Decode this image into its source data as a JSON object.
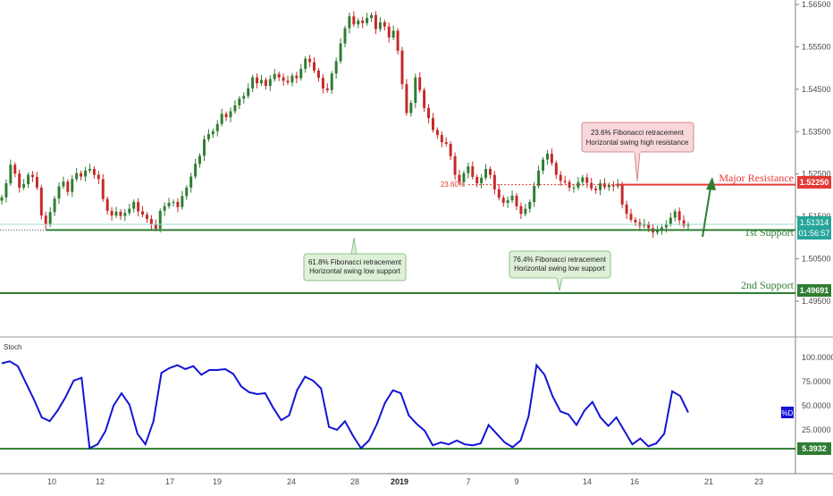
{
  "chart_data": [
    {
      "type": "candlestick",
      "price_ticks": [
        "1.56500",
        "1.55500",
        "1.54500",
        "1.53500",
        "1.52500",
        "1.51500",
        "1.50500",
        "1.49500"
      ],
      "date_ticks": [
        "10",
        "12",
        "17",
        "19",
        "24",
        "28",
        "2019",
        "7",
        "9",
        "14",
        "16",
        "21",
        "23"
      ],
      "ylim": [
        1.4875,
        1.567
      ],
      "price_close_series": [
        1.5195,
        1.5228,
        1.5272,
        1.5251,
        1.5218,
        1.5226,
        1.5248,
        1.5243,
        1.5218,
        1.5152,
        1.5131,
        1.516,
        1.5192,
        1.5221,
        1.5232,
        1.5208,
        1.5238,
        1.5252,
        1.5244,
        1.5258,
        1.5262,
        1.5248,
        1.5238,
        1.5191,
        1.5163,
        1.5152,
        1.5161,
        1.5151,
        1.5158,
        1.5168,
        1.5184,
        1.5162,
        1.5154,
        1.5144,
        1.5131,
        1.5121,
        1.5163,
        1.5174,
        1.5182,
        1.5184,
        1.5172,
        1.5198,
        1.5218,
        1.5244,
        1.5274,
        1.5293,
        1.5332,
        1.5344,
        1.5351,
        1.5368,
        1.5392,
        1.5384,
        1.5398,
        1.5412,
        1.5428,
        1.5434,
        1.5452,
        1.5478,
        1.5464,
        1.5472,
        1.5458,
        1.5474,
        1.5486,
        1.5478,
        1.547,
        1.5466,
        1.5482,
        1.5476,
        1.5498,
        1.5522,
        1.5514,
        1.5494,
        1.5477,
        1.5452,
        1.5448,
        1.5487,
        1.5516,
        1.5558,
        1.5594,
        1.5622,
        1.5603,
        1.5612,
        1.5606,
        1.5618,
        1.5625,
        1.5592,
        1.5608,
        1.5598,
        1.5572,
        1.5588,
        1.5541,
        1.5462,
        1.5394,
        1.5418,
        1.5478,
        1.5448,
        1.5406,
        1.5382,
        1.5354,
        1.5342,
        1.5325,
        1.5321,
        1.5292,
        1.5248,
        1.5231,
        1.5252,
        1.5268,
        1.5243,
        1.5228,
        1.5241,
        1.5262,
        1.5248,
        1.5214,
        1.5194,
        1.5182,
        1.5188,
        1.5199,
        1.5174,
        1.5156,
        1.5168,
        1.5184,
        1.5222,
        1.5258,
        1.5284,
        1.5298,
        1.5276,
        1.5248,
        1.5234,
        1.5231,
        1.5218,
        1.5218,
        1.5231,
        1.5242,
        1.5229,
        1.5216,
        1.5212,
        1.5228,
        1.5219,
        1.5224,
        1.5221,
        1.5226,
        1.5178,
        1.5156,
        1.5142,
        1.5136,
        1.5128,
        1.5132,
        1.5122,
        1.5112,
        1.5116,
        1.5124,
        1.5132,
        1.5147,
        1.5162,
        1.5141,
        1.5128,
        1.5131
      ],
      "stoch_series": [
        94,
        96,
        91,
        74,
        57,
        38,
        34,
        45,
        59,
        76,
        79,
        6,
        10,
        24,
        50,
        63,
        51,
        21,
        10,
        34,
        84,
        89,
        92,
        88,
        91,
        82,
        87,
        87,
        88,
        83,
        70,
        64,
        62,
        63,
        48,
        35,
        40,
        66,
        80,
        76,
        68,
        28,
        25,
        34,
        19,
        6,
        14,
        31,
        53,
        66,
        63,
        40,
        31,
        24,
        9,
        12,
        10,
        14,
        10,
        9,
        11,
        30,
        21,
        12,
        7,
        14,
        39,
        92,
        82,
        60,
        44,
        41,
        30,
        45,
        54,
        38,
        29,
        38,
        24,
        10,
        16,
        8,
        11,
        21,
        65,
        60,
        43
      ],
      "levels": {
        "major_resistance": {
          "label": "Major Resistance",
          "value": 1.5225,
          "badge": "1.52250",
          "color": "#e53935"
        },
        "first_support": {
          "label": "1st Support",
          "value": 1.5118,
          "color": "#2e7d32"
        },
        "second_support": {
          "label": "2nd Support",
          "value": 1.49691,
          "badge": "1.49691",
          "color": "#2e7d32"
        },
        "fib_236": {
          "label": "23.60%",
          "value": 1.5225,
          "color": "#e53935"
        }
      },
      "current_price": {
        "value": 1.51314,
        "badge": "1.51314",
        "countdown": "01:56:57",
        "color": "#26a69a"
      },
      "annotations": [
        {
          "title": "23.6% Fibonacci retracement",
          "subtitle": "Horizontal swing high resistance",
          "style": "red"
        },
        {
          "title": "61.8% Fibonacci retracement",
          "subtitle": "Horizontal swing low support",
          "style": "green"
        },
        {
          "title": "76.4% Fibonacci retracement",
          "subtitle": "Horizontal swing low support",
          "style": "green"
        }
      ],
      "colors": {
        "up": "#2e7d32",
        "down": "#c62828",
        "stoch_line": "#1414d6"
      }
    },
    {
      "type": "line",
      "title": "Stoch",
      "ticks": [
        "100.0000",
        "75.0000",
        "50.0000",
        "25.0000"
      ],
      "ylim": [
        -5,
        105
      ],
      "stoch_level": {
        "value": 5.3932,
        "badge": "5.3932",
        "color": "#2e7d32"
      },
      "legend_badge": "%D"
    }
  ]
}
